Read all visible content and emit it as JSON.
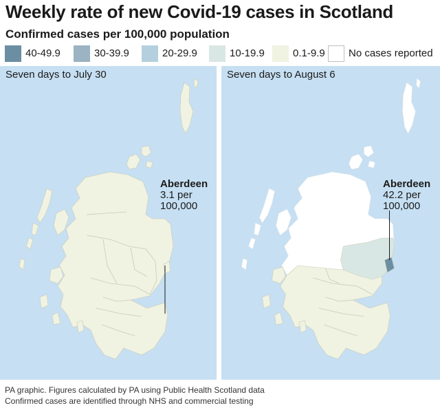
{
  "title": "Weekly rate of new Covid-19 cases in Scotland",
  "subtitle": "Confirmed cases per 100,000 population",
  "legend": [
    {
      "label": "40-49.9",
      "color": "#6b8ea3"
    },
    {
      "label": "30-39.9",
      "color": "#9bb3c2"
    },
    {
      "label": "20-29.9",
      "color": "#b4d0de"
    },
    {
      "label": "10-19.9",
      "color": "#d9e7e4"
    },
    {
      "label": "0.1-9.9",
      "color": "#f0f2e2"
    },
    {
      "label": "No cases reported",
      "color": "#ffffff"
    }
  ],
  "panels": [
    {
      "title": "Seven days to July 30",
      "annotation": {
        "place": "Aberdeen",
        "line1": "3.1 per",
        "line2": "100,000"
      },
      "highlight": "none"
    },
    {
      "title": "Seven days to August 6",
      "annotation": {
        "place": "Aberdeen",
        "line1": "42.2 per",
        "line2": "100,000"
      },
      "highlight": "aberdeen"
    }
  ],
  "colors": {
    "sea": "#c6dff2",
    "land_cases": "#f0f2e2",
    "land_none": "#ffffff",
    "aberdeenshire": "#d9e7e4",
    "aberdeen_city": "#6b8ea3",
    "boundary": "#c9ccb6"
  },
  "footer": {
    "line1": "PA graphic. Figures calculated by PA using Public Health Scotland data",
    "line2": "Confirmed cases are identified through NHS and commercial testing"
  }
}
